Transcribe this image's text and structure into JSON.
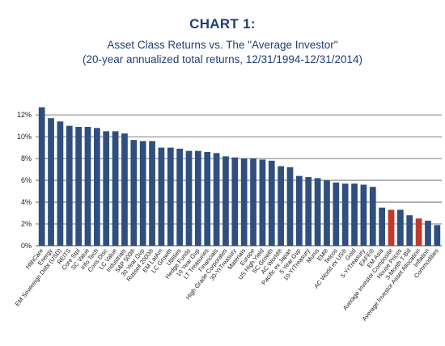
{
  "header": {
    "chart_number": "CHART 1:",
    "title": "Asset Class Returns vs. The \"Average Investor\"",
    "subtitle": "(20-year annualized total returns, 12/31/1994-12/31/2014)"
  },
  "colors": {
    "bar": "#2f4f7f",
    "highlight": "#c0392b",
    "title": "#1f3f78",
    "grid": "#555555"
  },
  "chart_data": {
    "type": "bar",
    "title": "Asset Class Returns vs. The \"Average Investor\"",
    "subtitle": "(20-year annualized total returns, 12/31/1994-12/31/2014)",
    "xlabel": "",
    "ylabel": "",
    "ylim": [
      0,
      12
    ],
    "yticks": [
      "0%",
      "2%",
      "4%",
      "6%",
      "8%",
      "10%",
      "12%"
    ],
    "grid": true,
    "categories": [
      "HlthCare",
      "Energy",
      "EM Sovereign Debt (USD)",
      "REITS",
      "Core Stpl",
      "SC Value",
      "Info Tech",
      "Cons Disc",
      "LC Value",
      "Industrials",
      "S&P 500®",
      "30 Year Gvp",
      "Russell 2000®",
      "EM LatAm",
      "LC Growth",
      "Utilities",
      "Hedge Funds",
      "10 Year Gvp",
      "LT Treasuries",
      "Financials",
      "High Grade Corporates",
      "30-YrTreasury",
      "Materials",
      "Europe",
      "US High Yield",
      "SC Growth",
      "AC World®",
      "Pacific ex Japan",
      "5 Year Gvp",
      "10-YrTreasury",
      "Munis",
      "EM®",
      "Telcos",
      "AC World ex US®",
      "Gold",
      "5-YrTreasury",
      "EAFE®",
      "EM Asia",
      "Average Investor Composite",
      "House Prices",
      "3-Month T-Bill",
      "Average Investor Asset Allocation",
      "Inflation",
      "Commodities"
    ],
    "values": [
      12.7,
      11.7,
      11.4,
      11.0,
      10.9,
      10.9,
      10.8,
      10.5,
      10.5,
      10.3,
      9.7,
      9.6,
      9.6,
      9.0,
      9.0,
      8.9,
      8.7,
      8.7,
      8.6,
      8.5,
      8.2,
      8.1,
      8.0,
      8.0,
      7.9,
      7.8,
      7.3,
      7.2,
      6.4,
      6.3,
      6.2,
      6.0,
      5.8,
      5.7,
      5.7,
      5.6,
      5.4,
      3.5,
      3.3,
      3.3,
      2.8,
      2.5,
      2.3,
      1.9
    ],
    "highlighted": [
      "Average Investor Composite",
      "Average Investor Asset Allocation"
    ]
  }
}
